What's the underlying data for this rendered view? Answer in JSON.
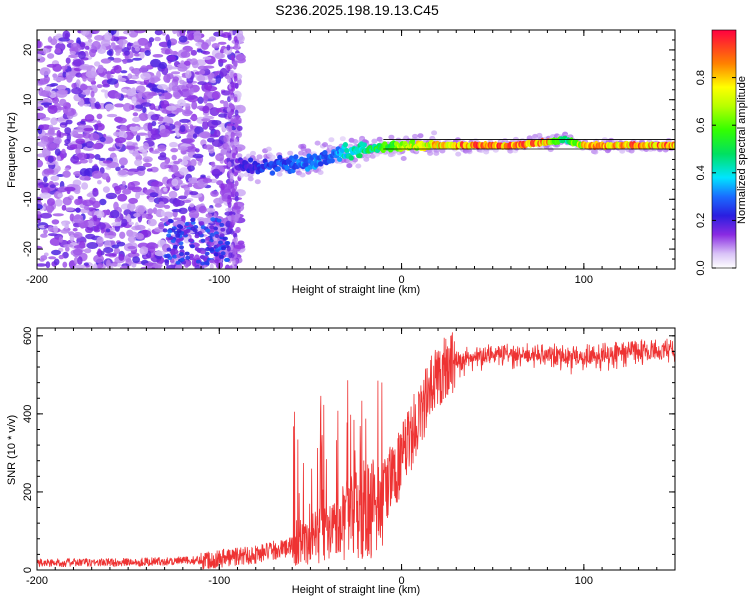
{
  "title": "S236.2025.198.19.13.C45",
  "chart_data": [
    {
      "type": "heatmap",
      "xlabel": "Height of straight line (km)",
      "ylabel": "Frequency (Hz)",
      "xlim": [
        -200,
        150
      ],
      "ylim": [
        -24,
        24
      ],
      "x_ticks": [
        -200,
        -100,
        0,
        100
      ],
      "y_ticks": [
        -20,
        -10,
        0,
        10,
        20
      ],
      "colorbar": {
        "label": "Normalized spectral amplitude",
        "range": [
          0,
          1
        ],
        "ticks": [
          0.0,
          0.2,
          0.4,
          0.6,
          0.8
        ]
      },
      "ridge": {
        "description_points_x_km": [
          -90,
          -80,
          -70,
          -60,
          -50,
          -40,
          -30,
          -20,
          -10,
          0,
          10,
          20,
          40,
          60,
          80,
          90,
          100,
          120,
          150
        ],
        "freq_hz": [
          -3.5,
          -3.5,
          -3.0,
          -3.0,
          -2.5,
          -1.5,
          -0.5,
          0.0,
          0.5,
          0.5,
          0.8,
          0.8,
          0.8,
          0.8,
          1.5,
          2.0,
          0.8,
          0.8,
          0.8
        ],
        "amplitude": [
          0.2,
          0.25,
          0.3,
          0.3,
          0.35,
          0.3,
          0.45,
          0.5,
          0.6,
          0.7,
          0.8,
          0.85,
          0.95,
          0.95,
          0.9,
          0.5,
          0.85,
          0.9,
          0.95
        ]
      },
      "low_cluster": {
        "x_range_km": [
          -130,
          -95
        ],
        "freq_range_hz": [
          -23,
          -14
        ],
        "amplitude": 0.2
      }
    },
    {
      "type": "line",
      "xlabel": "Height of straight line (km)",
      "ylabel": "SNR (10 * v/v)",
      "xlim": [
        -200,
        150
      ],
      "ylim": [
        0,
        620
      ],
      "x_ticks": [
        -200,
        -100,
        0,
        100
      ],
      "y_ticks": [
        0,
        200,
        400,
        600
      ],
      "color": "#ee3333",
      "trend": {
        "x_km": [
          -200,
          -150,
          -110,
          -100,
          -80,
          -60,
          -50,
          -40,
          -30,
          -20,
          -10,
          0,
          10,
          20,
          30,
          40,
          60,
          80,
          100,
          120,
          150
        ],
        "snr": [
          18,
          20,
          25,
          30,
          40,
          60,
          90,
          120,
          150,
          170,
          200,
          280,
          400,
          500,
          550,
          560,
          565,
          565,
          560,
          570,
          580
        ]
      }
    }
  ]
}
